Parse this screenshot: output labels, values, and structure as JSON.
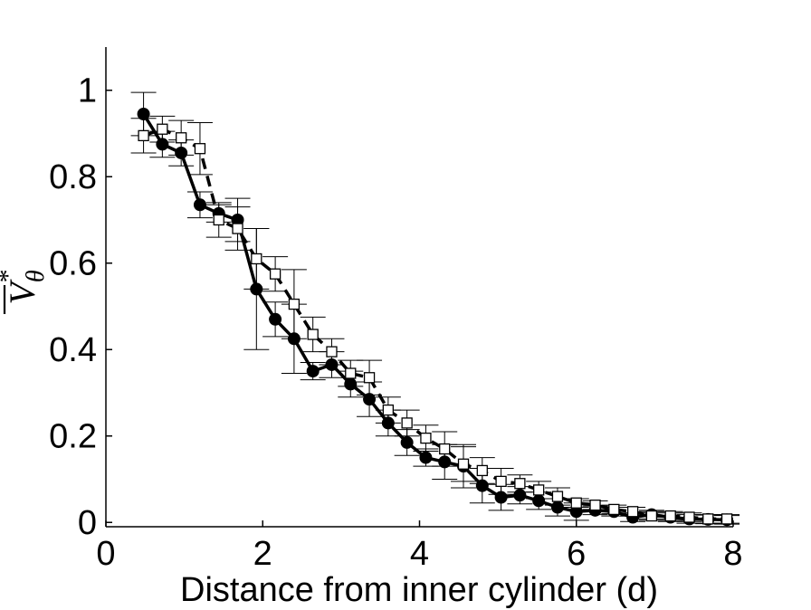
{
  "chart_data": {
    "type": "line",
    "title": "",
    "xlabel": "Distance from inner cylinder (d)",
    "ylabel": {
      "base": "V",
      "subscript": "θ",
      "superscript": "*",
      "overline": true
    },
    "xlim": [
      0,
      8
    ],
    "ylim": [
      -0.01,
      1.1
    ],
    "xticks": [
      0,
      2,
      4,
      6,
      8
    ],
    "xtick_labels": [
      "0",
      "2",
      "4",
      "6",
      "8"
    ],
    "yticks": [
      0,
      0.2,
      0.4,
      0.6,
      0.8,
      1
    ],
    "ytick_labels": [
      "0",
      "0.2",
      "0.4",
      "0.6",
      "0.8",
      "1"
    ],
    "grid": false,
    "legend": null,
    "series": [
      {
        "style": "solid",
        "marker": "filled-circle",
        "color": "#000000",
        "x": [
          0.48,
          0.72,
          0.96,
          1.2,
          1.44,
          1.68,
          1.92,
          2.16,
          2.4,
          2.64,
          2.88,
          3.12,
          3.36,
          3.6,
          3.84,
          4.08,
          4.32,
          4.56,
          4.8,
          5.04,
          5.28,
          5.52,
          5.76,
          6.0,
          6.24,
          6.48,
          6.72,
          6.96,
          7.2,
          7.44,
          7.68,
          7.92
        ],
        "y": [
          0.945,
          0.875,
          0.855,
          0.735,
          0.715,
          0.7,
          0.54,
          0.47,
          0.425,
          0.35,
          0.365,
          0.32,
          0.285,
          0.23,
          0.185,
          0.15,
          0.14,
          0.13,
          0.085,
          0.058,
          0.063,
          0.05,
          0.035,
          0.025,
          0.028,
          0.025,
          0.012,
          0.018,
          0.012,
          0.008,
          0.007,
          0.006
        ],
        "yerr": [
          0.05,
          0.03,
          0.03,
          0.03,
          0.02,
          0.05,
          0.14,
          0.04,
          0.08,
          0.02,
          0.03,
          0.03,
          0.04,
          0.03,
          0.03,
          0.02,
          0.04,
          0.05,
          0.04,
          0.03,
          0.02,
          0.02,
          0.02,
          0.02,
          0.01,
          0.01,
          0.01,
          0.01,
          0.01,
          0.01,
          0.01,
          0.01
        ]
      },
      {
        "style": "dashed",
        "marker": "open-square",
        "color": "#000000",
        "x": [
          0.48,
          0.72,
          0.96,
          1.2,
          1.44,
          1.68,
          1.92,
          2.16,
          2.4,
          2.64,
          2.88,
          3.12,
          3.36,
          3.6,
          3.84,
          4.08,
          4.32,
          4.56,
          4.8,
          5.04,
          5.28,
          5.52,
          5.76,
          6.0,
          6.24,
          6.48,
          6.72,
          6.96,
          7.2,
          7.44,
          7.68,
          7.92
        ],
        "y": [
          0.895,
          0.91,
          0.89,
          0.865,
          0.7,
          0.68,
          0.61,
          0.575,
          0.505,
          0.435,
          0.395,
          0.345,
          0.335,
          0.26,
          0.23,
          0.195,
          0.17,
          0.135,
          0.12,
          0.095,
          0.09,
          0.075,
          0.06,
          0.045,
          0.04,
          0.03,
          0.025,
          0.015,
          0.015,
          0.012,
          0.008,
          0.008
        ],
        "yerr": [
          0.04,
          0.03,
          0.04,
          0.06,
          0.04,
          0.05,
          0.07,
          0.04,
          0.08,
          0.04,
          0.03,
          0.03,
          0.04,
          0.03,
          0.03,
          0.03,
          0.04,
          0.04,
          0.03,
          0.03,
          0.02,
          0.02,
          0.02,
          0.01,
          0.01,
          0.01,
          0.01,
          0.01,
          0.01,
          0.01,
          0.01,
          0.01
        ]
      }
    ]
  }
}
